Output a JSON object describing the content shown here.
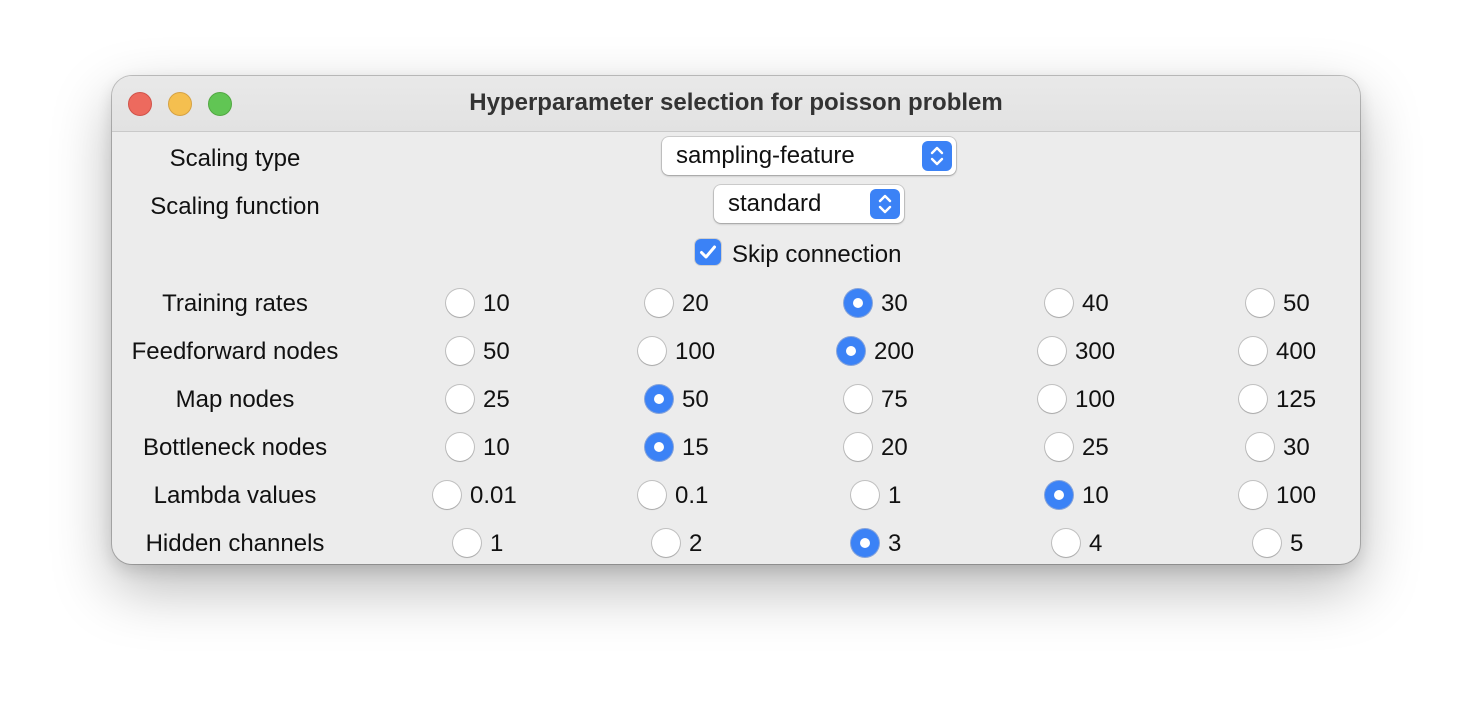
{
  "window": {
    "title": "Hyperparameter selection for poisson problem"
  },
  "scaling_type": {
    "label": "Scaling type",
    "value": "sampling-feature"
  },
  "scaling_function": {
    "label": "Scaling function",
    "value": "standard"
  },
  "skip_connection": {
    "label": "Skip connection",
    "checked": true
  },
  "groups": [
    {
      "label": "Training rates",
      "options": [
        "10",
        "20",
        "30",
        "40",
        "50"
      ],
      "selected": 2
    },
    {
      "label": "Feedforward nodes",
      "options": [
        "50",
        "100",
        "200",
        "300",
        "400"
      ],
      "selected": 2
    },
    {
      "label": "Map nodes",
      "options": [
        "25",
        "50",
        "75",
        "100",
        "125"
      ],
      "selected": 1
    },
    {
      "label": "Bottleneck nodes",
      "options": [
        "10",
        "15",
        "20",
        "25",
        "30"
      ],
      "selected": 1
    },
    {
      "label": "Lambda values",
      "options": [
        "0.01",
        "0.1",
        "1",
        "10",
        "100"
      ],
      "selected": 3
    },
    {
      "label": "Hidden channels",
      "options": [
        "1",
        "2",
        "3",
        "4",
        "5"
      ],
      "selected": 2
    }
  ],
  "colors": {
    "accent": "#3b82f6",
    "close": "#ed6a5e",
    "minimize": "#f5bf4f",
    "maximize": "#61c554"
  },
  "icons": {
    "close": "close-icon",
    "minimize": "minimize-icon",
    "maximize": "maximize-icon",
    "popup": "chevron-up-down-icon",
    "checkbox": "checkmark-icon"
  }
}
